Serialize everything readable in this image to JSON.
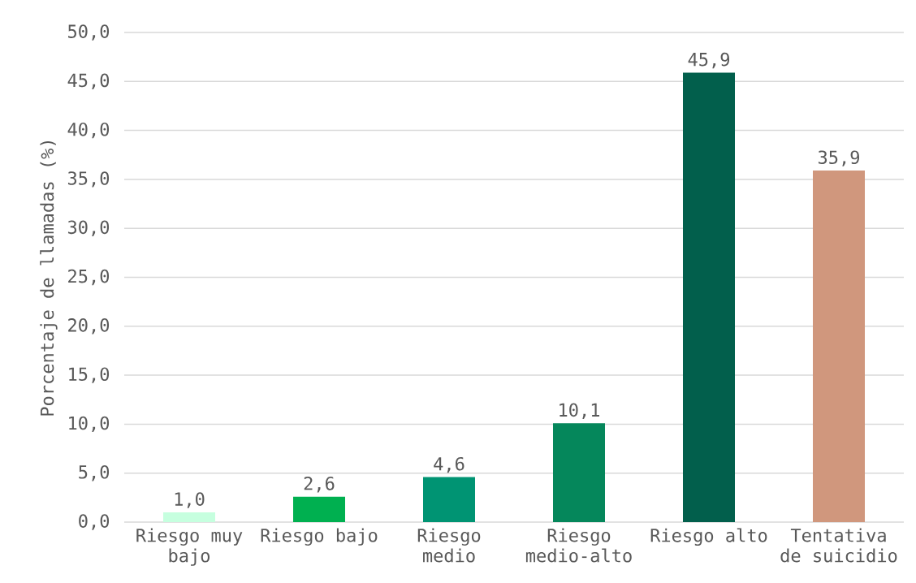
{
  "chart_data": {
    "type": "bar",
    "ylabel": "Porcentaje de llamadas (%)",
    "categories": [
      "Riesgo muy bajo",
      "Riesgo bajo",
      "Riesgo medio",
      "Riesgo medio-alto",
      "Riesgo alto",
      "Tentativa de suicidio"
    ],
    "values": [
      1.0,
      2.6,
      4.6,
      10.1,
      45.9,
      35.9
    ],
    "colors": [
      "#c6ffdf",
      "#00b050",
      "#009473",
      "#05875b",
      "#025f4c",
      "#d0977d"
    ],
    "value_labels": [
      "1,0",
      "2,6",
      "4,6",
      "10,1",
      "45,9",
      "35,9"
    ],
    "ylim": [
      0,
      50
    ],
    "yticks": [
      {
        "value": 0,
        "label": "0,0"
      },
      {
        "value": 5,
        "label": "5,0"
      },
      {
        "value": 10,
        "label": "10,0"
      },
      {
        "value": 15,
        "label": "15,0"
      },
      {
        "value": 20,
        "label": "20,0"
      },
      {
        "value": 25,
        "label": "25,0"
      },
      {
        "value": 30,
        "label": "30,0"
      },
      {
        "value": 35,
        "label": "35,0"
      },
      {
        "value": 40,
        "label": "40,0"
      },
      {
        "value": 45,
        "label": "45,0"
      },
      {
        "value": 50,
        "label": "50,0"
      }
    ],
    "grid": "y"
  }
}
